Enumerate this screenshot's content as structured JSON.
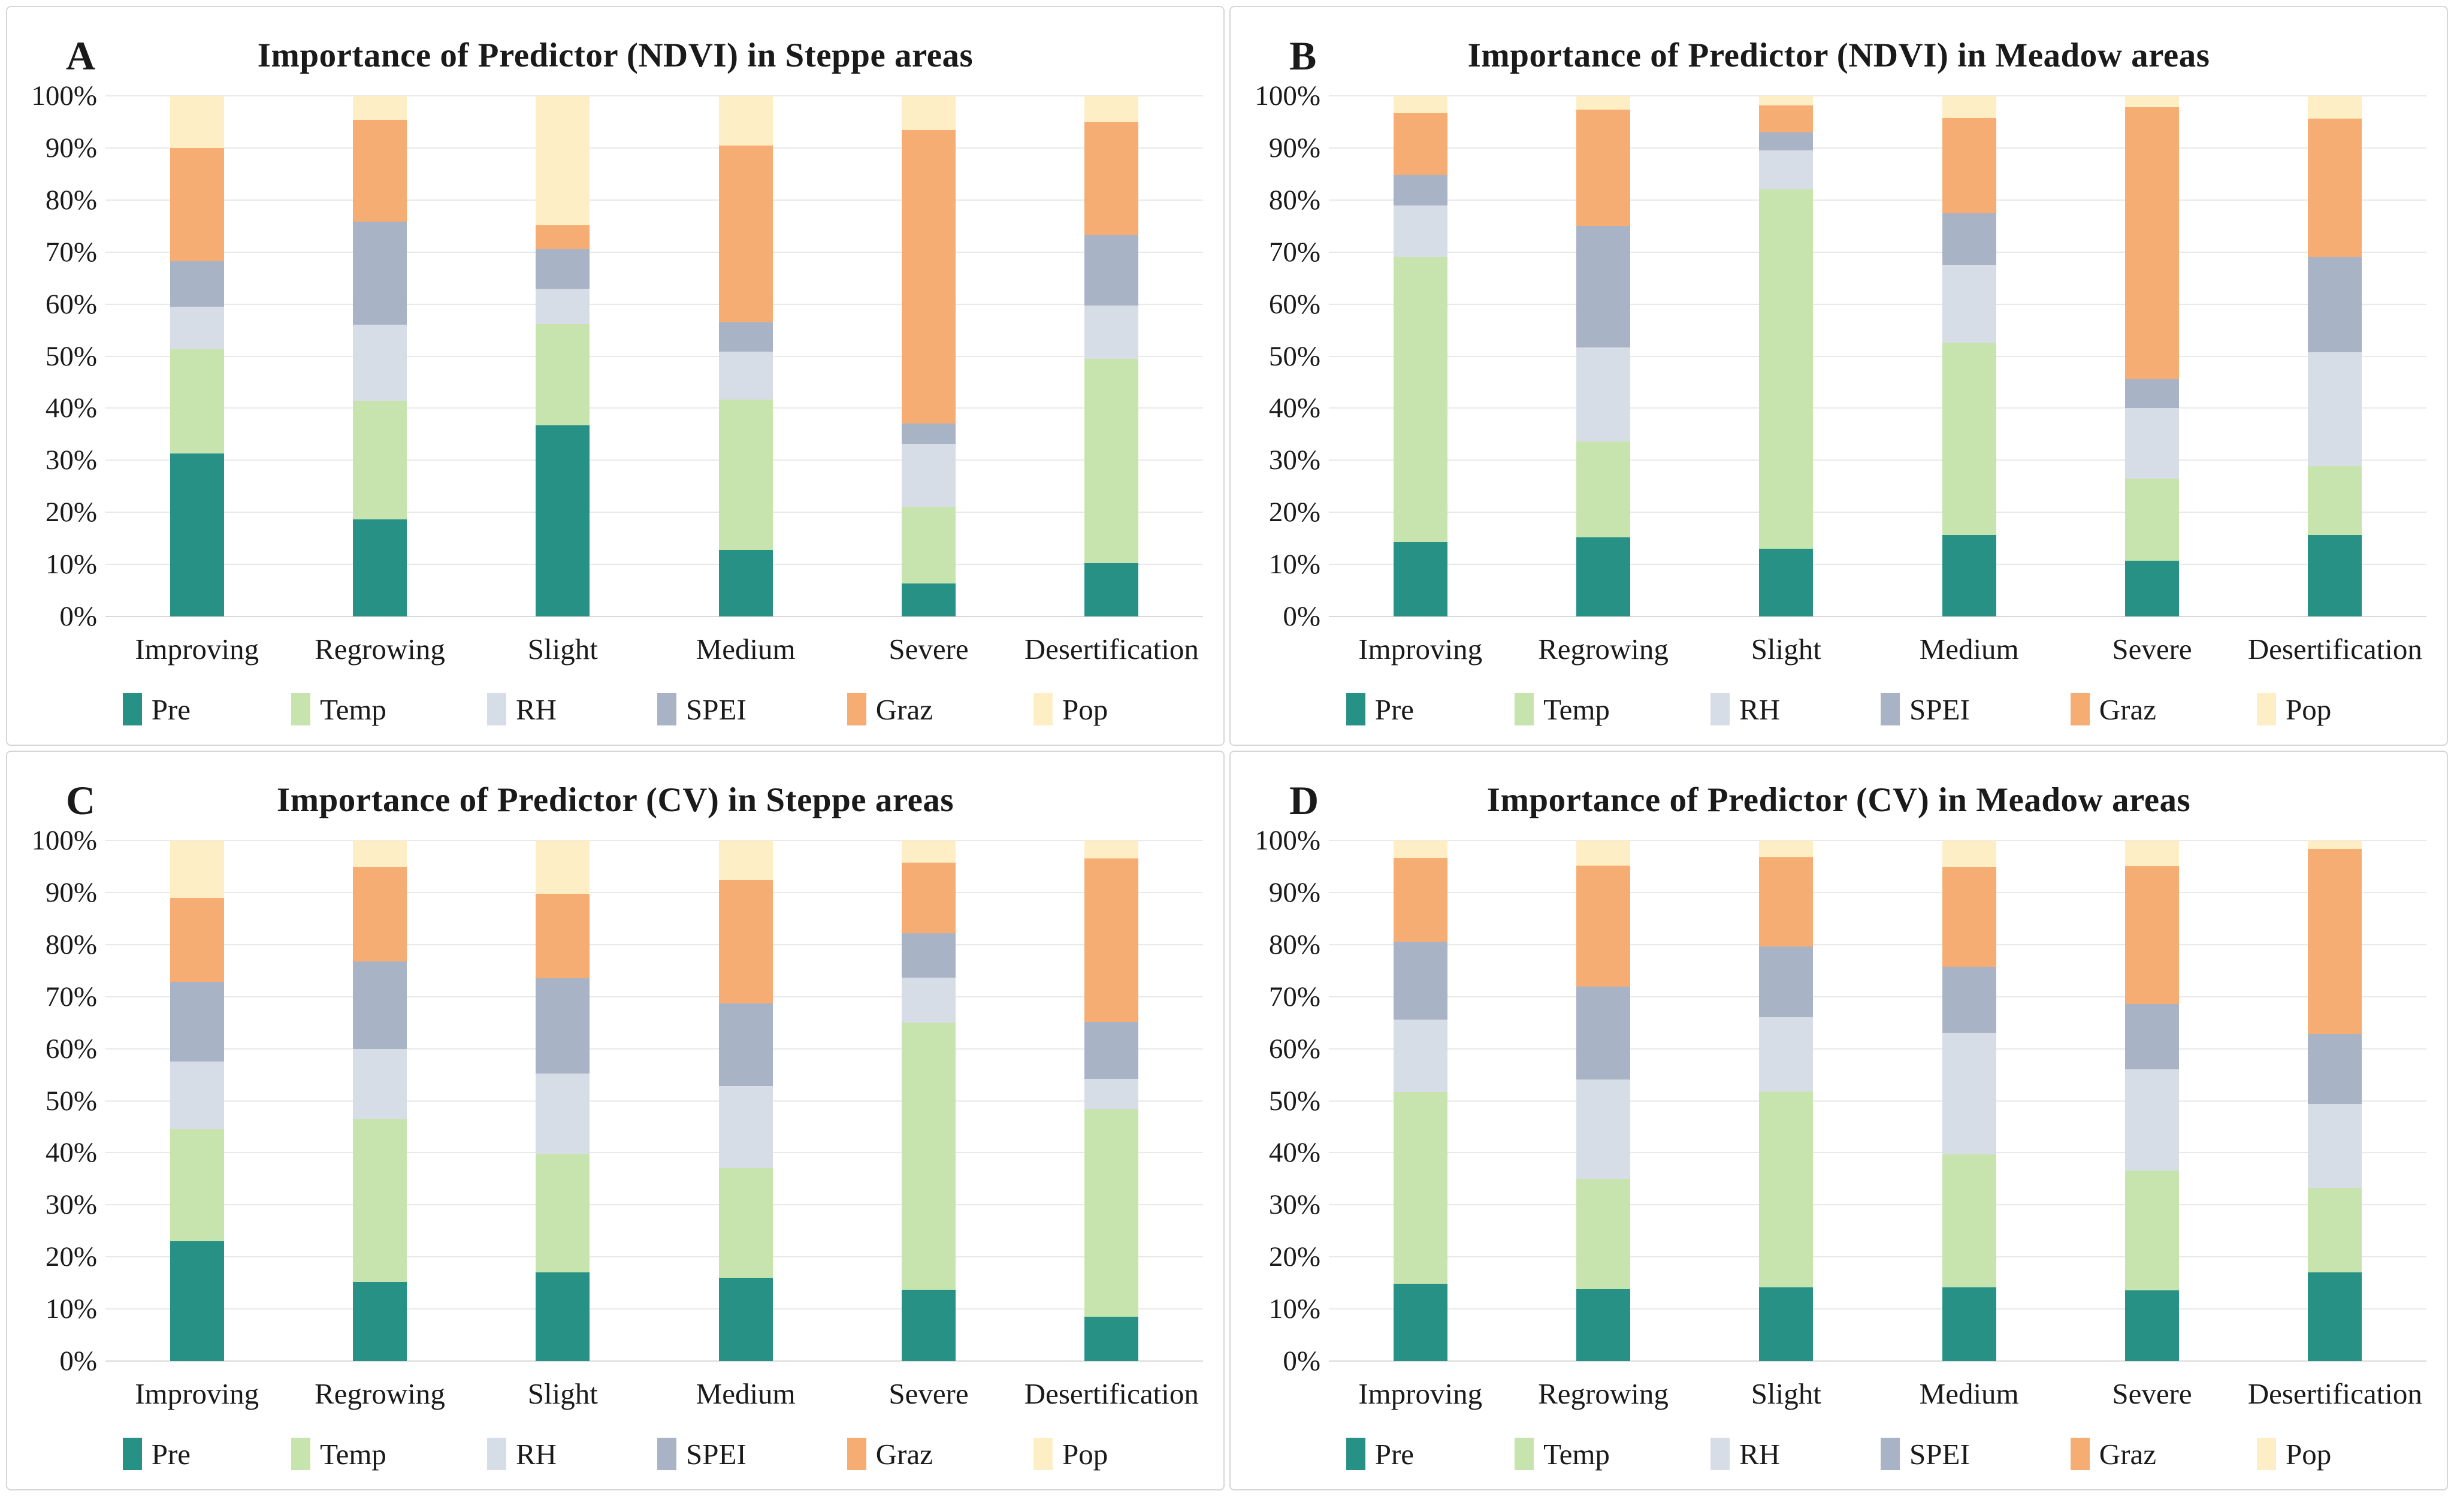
{
  "colors": {
    "Pre": "#279186",
    "Temp": "#c8e4ae",
    "RH": "#d7dde7",
    "SPEI": "#a9b3c6",
    "Graz": "#f5ad74",
    "Pop": "#fdeec6",
    "gridline": "#e9e9e9",
    "panel_border": "#d6d6d6",
    "text": "#1a1a1a"
  },
  "y_ticks": [
    "100%",
    "90%",
    "80%",
    "70%",
    "60%",
    "50%",
    "40%",
    "30%",
    "20%",
    "10%",
    "0%"
  ],
  "legend_labels": [
    "Pre",
    "Temp",
    "RH",
    "SPEI",
    "Graz",
    "Pop"
  ],
  "categories": [
    "Improving",
    "Regrowing",
    "Slight",
    "Medium",
    "Severe",
    "Desertification"
  ],
  "chart_data": [
    {
      "type": "bar",
      "stacked": true,
      "panel_label": "A",
      "title": "Importance of Predictor (NDVI) in Steppe areas",
      "ylim": [
        0,
        100
      ],
      "unit": "%",
      "grid": true,
      "legend_position": "bottom",
      "categories": [
        "Improving",
        "Regrowing",
        "Slight",
        "Medium",
        "Severe",
        "Desertification"
      ],
      "series": [
        {
          "name": "Pre",
          "values": [
            31.3,
            18.7,
            36.7,
            12.8,
            6.3,
            10.2
          ]
        },
        {
          "name": "Temp",
          "values": [
            20.0,
            22.7,
            19.5,
            28.9,
            14.8,
            39.3
          ]
        },
        {
          "name": "RH",
          "values": [
            8.2,
            14.6,
            6.8,
            9.2,
            12.1,
            10.2
          ]
        },
        {
          "name": "SPEI",
          "values": [
            8.8,
            19.8,
            7.6,
            5.6,
            3.9,
            13.6
          ]
        },
        {
          "name": "Graz",
          "values": [
            21.7,
            19.6,
            4.6,
            33.9,
            56.4,
            21.6
          ]
        },
        {
          "name": "Pop",
          "values": [
            10.0,
            4.6,
            24.8,
            9.6,
            6.5,
            5.1
          ]
        }
      ]
    },
    {
      "type": "bar",
      "stacked": true,
      "panel_label": "B",
      "title": "Importance of Predictor (NDVI) in Meadow areas",
      "ylim": [
        0,
        100
      ],
      "unit": "%",
      "grid": true,
      "legend_position": "bottom",
      "categories": [
        "Improving",
        "Regrowing",
        "Slight",
        "Medium",
        "Severe",
        "Desertification"
      ],
      "series": [
        {
          "name": "Pre",
          "values": [
            14.3,
            15.2,
            13.0,
            15.7,
            10.7,
            15.7
          ]
        },
        {
          "name": "Temp",
          "values": [
            54.7,
            18.4,
            69.0,
            36.9,
            15.8,
            13.2
          ]
        },
        {
          "name": "RH",
          "values": [
            10.0,
            18.1,
            7.5,
            15.0,
            13.5,
            21.9
          ]
        },
        {
          "name": "SPEI",
          "values": [
            5.8,
            23.3,
            3.5,
            9.9,
            5.6,
            18.2
          ]
        },
        {
          "name": "Graz",
          "values": [
            11.9,
            22.4,
            5.2,
            18.2,
            52.2,
            26.6
          ]
        },
        {
          "name": "Pop",
          "values": [
            3.3,
            2.6,
            1.8,
            4.3,
            2.2,
            4.4
          ]
        }
      ]
    },
    {
      "type": "bar",
      "stacked": true,
      "panel_label": "C",
      "title": "Importance of Predictor (CV) in Steppe areas",
      "ylim": [
        0,
        100
      ],
      "unit": "%",
      "grid": true,
      "legend_position": "bottom",
      "categories": [
        "Improving",
        "Regrowing",
        "Slight",
        "Medium",
        "Severe",
        "Desertification"
      ],
      "series": [
        {
          "name": "Pre",
          "values": [
            23.0,
            15.2,
            17.0,
            16.0,
            13.7,
            8.5
          ]
        },
        {
          "name": "Temp",
          "values": [
            21.5,
            31.3,
            22.8,
            21.0,
            51.3,
            40.0
          ]
        },
        {
          "name": "RH",
          "values": [
            13.0,
            13.5,
            15.4,
            15.8,
            8.6,
            5.7
          ]
        },
        {
          "name": "SPEI",
          "values": [
            15.3,
            16.8,
            18.3,
            15.9,
            8.6,
            10.9
          ]
        },
        {
          "name": "Graz",
          "values": [
            16.2,
            18.1,
            16.3,
            23.7,
            13.5,
            31.5
          ]
        },
        {
          "name": "Pop",
          "values": [
            11.0,
            5.1,
            10.2,
            7.6,
            4.3,
            3.4
          ]
        }
      ]
    },
    {
      "type": "bar",
      "stacked": true,
      "panel_label": "D",
      "title": "Importance of Predictor (CV) in Meadow areas",
      "ylim": [
        0,
        100
      ],
      "unit": "%",
      "grid": true,
      "legend_position": "bottom",
      "categories": [
        "Improving",
        "Regrowing",
        "Slight",
        "Medium",
        "Severe",
        "Desertification"
      ],
      "series": [
        {
          "name": "Pre",
          "values": [
            14.8,
            13.8,
            14.1,
            14.1,
            13.6,
            17.0
          ]
        },
        {
          "name": "Temp",
          "values": [
            36.9,
            21.2,
            37.7,
            25.6,
            23.0,
            16.3
          ]
        },
        {
          "name": "RH",
          "values": [
            13.9,
            19.1,
            14.3,
            23.4,
            19.4,
            16.1
          ]
        },
        {
          "name": "SPEI",
          "values": [
            15.0,
            17.8,
            13.5,
            12.6,
            12.6,
            13.4
          ]
        },
        {
          "name": "Graz",
          "values": [
            16.1,
            23.3,
            17.2,
            19.2,
            26.5,
            35.6
          ]
        },
        {
          "name": "Pop",
          "values": [
            3.3,
            4.8,
            3.2,
            5.1,
            4.9,
            1.6
          ]
        }
      ]
    }
  ]
}
